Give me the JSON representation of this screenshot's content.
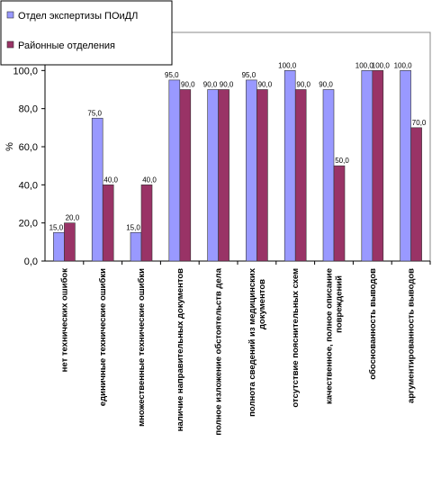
{
  "chart_data": {
    "type": "bar",
    "y_label": "%",
    "categories": [
      "нет технических ошибок",
      "единичные технические ошибки",
      "множественные технические ошибки",
      "наличие направительных документов",
      "полное изложение обстоятельств дела",
      "полнота сведений из медицинских\nдокументов",
      "отсутствие пояснительных схем",
      "качественное, полное описание\nповреждений",
      "обоснованность выводов",
      "аргументированность выводов"
    ],
    "series": [
      {
        "name": "Отдел экспертизы ПОиДЛ",
        "color": "#9999ff",
        "values": [
          15,
          75,
          15,
          95,
          90,
          95,
          100,
          90,
          100,
          100
        ],
        "value_labels": [
          "15,0",
          "75,0",
          "15,0",
          "95,0",
          "90,0",
          "95,0",
          "100,0",
          "90,0",
          "100,0",
          "100,0"
        ]
      },
      {
        "name": "Районные отделения",
        "color": "#993366",
        "values": [
          20,
          40,
          40,
          90,
          90,
          90,
          90,
          50,
          100,
          70
        ],
        "value_labels": [
          "20,0",
          "40,0",
          "40,0",
          "90,0",
          "90,0",
          "90,0",
          "90,0",
          "50,0",
          "100,0",
          "70,0"
        ]
      }
    ],
    "ylim": [
      0,
      120
    ],
    "yticks": [
      {
        "value": 0,
        "label": "0,0"
      },
      {
        "value": 20,
        "label": "20,0"
      },
      {
        "value": 40,
        "label": "40,0"
      },
      {
        "value": 60,
        "label": "60,0"
      },
      {
        "value": 80,
        "label": "80,0"
      },
      {
        "value": 100,
        "label": "100,0"
      }
    ],
    "grid": false,
    "legend": "top-left"
  }
}
